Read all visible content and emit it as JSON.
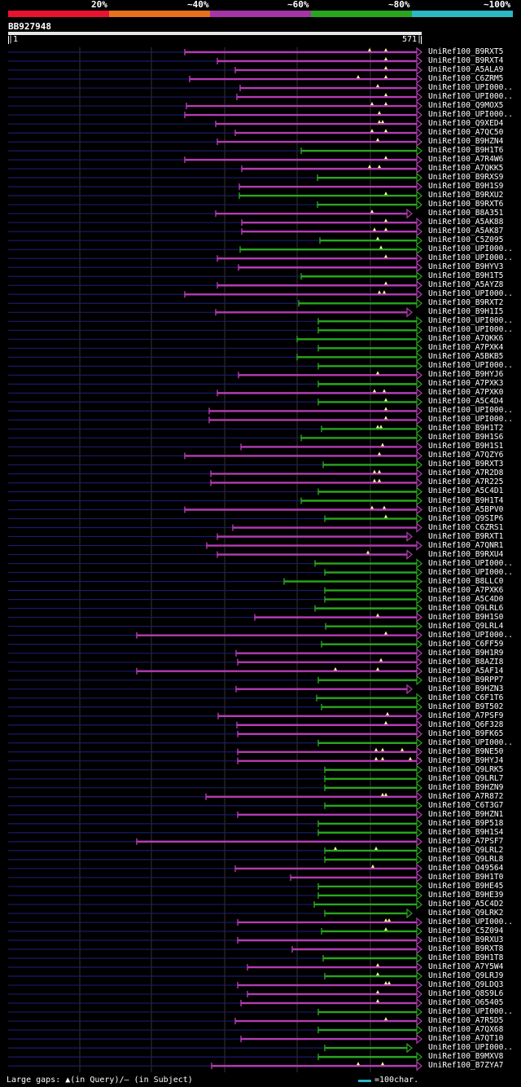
{
  "legend": {
    "segments": [
      {
        "color": "#e8132f"
      },
      {
        "color": "#e8711e"
      },
      {
        "color": "#a534a5"
      },
      {
        "color": "#2aa51f"
      },
      {
        "color": "#2bb7c4"
      }
    ],
    "labels": [
      "20%",
      "~40%",
      "~60%",
      "~80%",
      "~100%"
    ]
  },
  "query": {
    "name": "BB927948",
    "start": "|1",
    "end": "571|"
  },
  "colors": {
    "purple": "#b43cb4",
    "green": "#2aa51f",
    "stub": "#1a1a6a",
    "grid": "#333333",
    "gap": "#ffff99"
  },
  "footer": {
    "gaps_text": "Large gaps: ▲(in Query)/– (in Subject)",
    "scale_text": "=100char."
  },
  "hits": [
    {
      "label": "UniRef100_B9RXT5",
      "start": 227,
      "color": "purple",
      "gaps": [
        454,
        474
      ]
    },
    {
      "label": "UniRef100_B9RXT4",
      "start": 267,
      "color": "purple",
      "gaps": [
        474
      ]
    },
    {
      "label": "UniRef100_A5ALA9",
      "start": 289,
      "color": "purple",
      "gaps": [
        474
      ]
    },
    {
      "label": "UniRef100_C6ZRM5",
      "start": 233,
      "color": "purple",
      "gaps": [
        440,
        474
      ]
    },
    {
      "label": "UniRef100_UPI000..",
      "start": 295,
      "color": "purple",
      "gaps": [
        464
      ]
    },
    {
      "label": "UniRef100_UPI000..",
      "start": 291,
      "color": "purple",
      "gaps": [
        474
      ]
    },
    {
      "label": "UniRef100_Q9MOX5",
      "start": 229,
      "color": "purple",
      "gaps": [
        457,
        474
      ]
    },
    {
      "label": "UniRef100_UPI000..",
      "start": 227,
      "color": "purple",
      "gaps": [
        466
      ]
    },
    {
      "label": "UniRef100_Q9XED4",
      "start": 265,
      "color": "purple",
      "gaps": [
        466,
        470
      ]
    },
    {
      "label": "UniRef100_A7QC50",
      "start": 289,
      "color": "purple",
      "gaps": [
        457,
        474
      ]
    },
    {
      "label": "UniRef100_B9HZN4",
      "start": 267,
      "color": "purple",
      "gaps": [
        464
      ]
    },
    {
      "label": "UniRef100_B9H1T6",
      "start": 370,
      "color": "green",
      "gaps": []
    },
    {
      "label": "UniRef100_A7R4W6",
      "start": 227,
      "color": "purple",
      "gaps": [
        474
      ]
    },
    {
      "label": "UniRef100_A7QKK5",
      "start": 297,
      "color": "purple",
      "gaps": [
        454,
        466
      ]
    },
    {
      "label": "UniRef100_B9RXS9",
      "start": 390,
      "color": "green",
      "gaps": []
    },
    {
      "label": "UniRef100_B9H1S9",
      "start": 294,
      "color": "purple",
      "gaps": []
    },
    {
      "label": "UniRef100_B9RXU2",
      "start": 294,
      "color": "green",
      "gaps": [
        474
      ]
    },
    {
      "label": "UniRef100_B9RXT6",
      "start": 390,
      "color": "green",
      "gaps": []
    },
    {
      "label": "UniRef100_B8A351",
      "start": 265,
      "color": "purple",
      "gaps": [
        457
      ],
      "short": true
    },
    {
      "label": "UniRef100_A5AK88",
      "start": 297,
      "color": "purple",
      "gaps": [
        474
      ]
    },
    {
      "label": "UniRef100_A5AK87",
      "start": 297,
      "color": "purple",
      "gaps": [
        460,
        474
      ]
    },
    {
      "label": "UniRef100_C5Z095",
      "start": 393,
      "color": "green",
      "gaps": [
        464
      ]
    },
    {
      "label": "UniRef100_UPI000..",
      "start": 295,
      "color": "green",
      "gaps": [
        468
      ]
    },
    {
      "label": "UniRef100_UPI000..",
      "start": 267,
      "color": "purple",
      "gaps": [
        474
      ]
    },
    {
      "label": "UniRef100_B9HYV3",
      "start": 293,
      "color": "purple",
      "gaps": []
    },
    {
      "label": "UniRef100_B9H1T5",
      "start": 370,
      "color": "green",
      "gaps": []
    },
    {
      "label": "UniRef100_A5AYZ8",
      "start": 267,
      "color": "purple",
      "gaps": [
        474
      ]
    },
    {
      "label": "UniRef100_UPI000..",
      "start": 227,
      "color": "purple",
      "gaps": [
        466,
        472
      ]
    },
    {
      "label": "UniRef100_B9RXT2",
      "start": 367,
      "color": "green",
      "gaps": []
    },
    {
      "label": "UniRef100_B9H1I5",
      "start": 265,
      "color": "purple",
      "gaps": [],
      "short": true
    },
    {
      "label": "UniRef100_UPI000..",
      "start": 391,
      "color": "green",
      "gaps": []
    },
    {
      "label": "UniRef100_UPI000..",
      "start": 391,
      "color": "green",
      "gaps": []
    },
    {
      "label": "UniRef100_A7QKK6",
      "start": 365,
      "color": "green",
      "gaps": []
    },
    {
      "label": "UniRef100_A7PXK4",
      "start": 391,
      "color": "green",
      "gaps": []
    },
    {
      "label": "UniRef100_A5BKB5",
      "start": 365,
      "color": "green",
      "gaps": []
    },
    {
      "label": "UniRef100_UPI000..",
      "start": 391,
      "color": "green",
      "gaps": []
    },
    {
      "label": "UniRef100_B9HYJ6",
      "start": 293,
      "color": "purple",
      "gaps": [
        464
      ]
    },
    {
      "label": "UniRef100_A7PXK3",
      "start": 391,
      "color": "green",
      "gaps": []
    },
    {
      "label": "UniRef100_A7PXK0",
      "start": 267,
      "color": "purple",
      "gaps": [
        460,
        472
      ]
    },
    {
      "label": "UniRef100_A5C4D4",
      "start": 391,
      "color": "green",
      "gaps": [
        474
      ]
    },
    {
      "label": "UniRef100_UPI000..",
      "start": 257,
      "color": "purple",
      "gaps": [
        474
      ]
    },
    {
      "label": "UniRef100_UPI000..",
      "start": 257,
      "color": "purple",
      "gaps": [
        474
      ]
    },
    {
      "label": "UniRef100_B9H1T2",
      "start": 395,
      "color": "green",
      "gaps": [
        464,
        468
      ]
    },
    {
      "label": "UniRef100_B9H1S6",
      "start": 370,
      "color": "green",
      "gaps": []
    },
    {
      "label": "UniRef100_B9H1S1",
      "start": 296,
      "color": "purple",
      "gaps": [
        470
      ]
    },
    {
      "label": "UniRef100_A7QZY6",
      "start": 227,
      "color": "purple",
      "gaps": [
        466
      ]
    },
    {
      "label": "UniRef100_B9RXT3",
      "start": 397,
      "color": "green",
      "gaps": []
    },
    {
      "label": "UniRef100_A7R2D8",
      "start": 259,
      "color": "purple",
      "gaps": [
        460,
        466
      ]
    },
    {
      "label": "UniRef100_A7R225",
      "start": 259,
      "color": "purple",
      "gaps": [
        460,
        466
      ]
    },
    {
      "label": "UniRef100_A5C4D1",
      "start": 391,
      "color": "green",
      "gaps": []
    },
    {
      "label": "UniRef100_B9H1T4",
      "start": 370,
      "color": "green",
      "gaps": []
    },
    {
      "label": "UniRef100_A5BPV0",
      "start": 227,
      "color": "purple",
      "gaps": [
        457,
        472
      ]
    },
    {
      "label": "UniRef100_Q9SIP6",
      "start": 399,
      "color": "green",
      "gaps": [
        474
      ]
    },
    {
      "label": "UniRef100_C6ZRS1",
      "start": 286,
      "color": "purple",
      "gaps": []
    },
    {
      "label": "UniRef100_B9RXT1",
      "start": 267,
      "color": "purple",
      "gaps": [],
      "short": true
    },
    {
      "label": "UniRef100_A7QNR1",
      "start": 254,
      "color": "purple",
      "gaps": []
    },
    {
      "label": "UniRef100_B9RXU4",
      "start": 267,
      "color": "purple",
      "gaps": [
        452
      ],
      "short": true
    },
    {
      "label": "UniRef100_UPI000..",
      "start": 387,
      "color": "green",
      "gaps": []
    },
    {
      "label": "UniRef100_UPI000..",
      "start": 399,
      "color": "green",
      "gaps": []
    },
    {
      "label": "UniRef100_B8LLC0",
      "start": 349,
      "color": "green",
      "gaps": []
    },
    {
      "label": "UniRef100_A7PXK6",
      "start": 399,
      "color": "green",
      "gaps": []
    },
    {
      "label": "UniRef100_A5C4D0",
      "start": 399,
      "color": "green",
      "gaps": []
    },
    {
      "label": "UniRef100_Q9LRL6",
      "start": 387,
      "color": "green",
      "gaps": []
    },
    {
      "label": "UniRef100_B9H1S0",
      "start": 313,
      "color": "purple",
      "gaps": [
        464
      ]
    },
    {
      "label": "UniRef100_Q9LRL4",
      "start": 400,
      "color": "green",
      "gaps": []
    },
    {
      "label": "UniRef100_UPI000..",
      "start": 168,
      "color": "purple",
      "gaps": [
        474
      ]
    },
    {
      "label": "UniRef100_C6FF59",
      "start": 395,
      "color": "green",
      "gaps": []
    },
    {
      "label": "UniRef100_B9H1R9",
      "start": 290,
      "color": "purple",
      "gaps": []
    },
    {
      "label": "UniRef100_B8AZI8",
      "start": 292,
      "color": "purple",
      "gaps": [
        468
      ]
    },
    {
      "label": "UniRef100_A5AF14",
      "start": 168,
      "color": "purple",
      "gaps": [
        412,
        464
      ]
    },
    {
      "label": "UniRef100_B9RPP7",
      "start": 391,
      "color": "green",
      "gaps": []
    },
    {
      "label": "UniRef100_B9HZN3",
      "start": 290,
      "color": "purple",
      "gaps": [],
      "short": true
    },
    {
      "label": "UniRef100_C6F1T6",
      "start": 389,
      "color": "green",
      "gaps": []
    },
    {
      "label": "UniRef100_B9T502",
      "start": 395,
      "color": "green",
      "gaps": []
    },
    {
      "label": "UniRef100_A7PSF9",
      "start": 268,
      "color": "purple",
      "gaps": [
        476
      ]
    },
    {
      "label": "UniRef100_Q6F328",
      "start": 291,
      "color": "purple",
      "gaps": [
        474
      ]
    },
    {
      "label": "UniRef100_B9FK65",
      "start": 292,
      "color": "purple",
      "gaps": []
    },
    {
      "label": "UniRef100_UPI000..",
      "start": 391,
      "color": "green",
      "gaps": []
    },
    {
      "label": "UniRef100_B9NE50",
      "start": 292,
      "color": "purple",
      "gaps": [
        462,
        470,
        494
      ]
    },
    {
      "label": "UniRef100_B9HYJ4",
      "start": 292,
      "color": "purple",
      "gaps": [
        462,
        470,
        504
      ]
    },
    {
      "label": "UniRef100_Q9LRK5",
      "start": 399,
      "color": "green",
      "gaps": []
    },
    {
      "label": "UniRef100_Q9LRL7",
      "start": 399,
      "color": "green",
      "gaps": []
    },
    {
      "label": "UniRef100_B9HZN9",
      "start": 399,
      "color": "green",
      "gaps": []
    },
    {
      "label": "UniRef100_A7R872",
      "start": 253,
      "color": "purple",
      "gaps": [
        470,
        474
      ]
    },
    {
      "label": "UniRef100_C6T3G7",
      "start": 399,
      "color": "green",
      "gaps": []
    },
    {
      "label": "UniRef100_B9HZN1",
      "start": 292,
      "color": "purple",
      "gaps": []
    },
    {
      "label": "UniRef100_B9P518",
      "start": 391,
      "color": "green",
      "gaps": []
    },
    {
      "label": "UniRef100_B9H1S4",
      "start": 391,
      "color": "green",
      "gaps": []
    },
    {
      "label": "UniRef100_A7PSF7",
      "start": 168,
      "color": "purple",
      "gaps": []
    },
    {
      "label": "UniRef100_Q9LRL2",
      "start": 399,
      "color": "green",
      "gaps": [
        412,
        462
      ]
    },
    {
      "label": "UniRef100_Q9LRL8",
      "start": 399,
      "color": "green",
      "gaps": []
    },
    {
      "label": "UniRef100_O49564",
      "start": 289,
      "color": "purple",
      "gaps": [
        458
      ]
    },
    {
      "label": "UniRef100_B9H1T0",
      "start": 357,
      "color": "purple",
      "gaps": []
    },
    {
      "label": "UniRef100_B9HE45",
      "start": 391,
      "color": "green",
      "gaps": []
    },
    {
      "label": "UniRef100_B9HE39",
      "start": 391,
      "color": "green",
      "gaps": []
    },
    {
      "label": "UniRef100_A5C4D2",
      "start": 386,
      "color": "green",
      "gaps": []
    },
    {
      "label": "UniRef100_Q9LRK2",
      "start": 399,
      "color": "green",
      "gaps": [],
      "short": true
    },
    {
      "label": "UniRef100_UPI000..",
      "start": 292,
      "color": "purple",
      "gaps": [
        474,
        478
      ]
    },
    {
      "label": "UniRef100_C5Z094",
      "start": 395,
      "color": "green",
      "gaps": [
        474
      ]
    },
    {
      "label": "UniRef100_B9RXU3",
      "start": 292,
      "color": "purple",
      "gaps": []
    },
    {
      "label": "UniRef100_B9RXT8",
      "start": 359,
      "color": "purple",
      "gaps": []
    },
    {
      "label": "UniRef100_B9H1T8",
      "start": 397,
      "color": "green",
      "gaps": []
    },
    {
      "label": "UniRef100_A7Y5W4",
      "start": 304,
      "color": "purple",
      "gaps": [
        464
      ]
    },
    {
      "label": "UniRef100_Q9LRJ9",
      "start": 399,
      "color": "green",
      "gaps": [
        464
      ]
    },
    {
      "label": "UniRef100_Q9LDQ3",
      "start": 292,
      "color": "purple",
      "gaps": [
        474,
        478
      ]
    },
    {
      "label": "UniRef100_Q8S9L6",
      "start": 304,
      "color": "purple",
      "gaps": [
        464
      ]
    },
    {
      "label": "UniRef100_O65405",
      "start": 296,
      "color": "purple",
      "gaps": [
        464
      ]
    },
    {
      "label": "UniRef100_UPI000..",
      "start": 391,
      "color": "green",
      "gaps": []
    },
    {
      "label": "UniRef100_A7R5D5",
      "start": 289,
      "color": "purple",
      "gaps": [
        474
      ]
    },
    {
      "label": "UniRef100_A7QX68",
      "start": 391,
      "color": "green",
      "gaps": []
    },
    {
      "label": "UniRef100_A7QT10",
      "start": 296,
      "color": "purple",
      "gaps": []
    },
    {
      "label": "UniRef100_UPI000..",
      "start": 399,
      "color": "green",
      "gaps": [],
      "short": true
    },
    {
      "label": "UniRef100_B9MXV8",
      "start": 391,
      "color": "green",
      "gaps": []
    },
    {
      "label": "UniRef100_B7ZYA7",
      "start": 260,
      "color": "purple",
      "gaps": [
        440,
        470
      ]
    }
  ]
}
